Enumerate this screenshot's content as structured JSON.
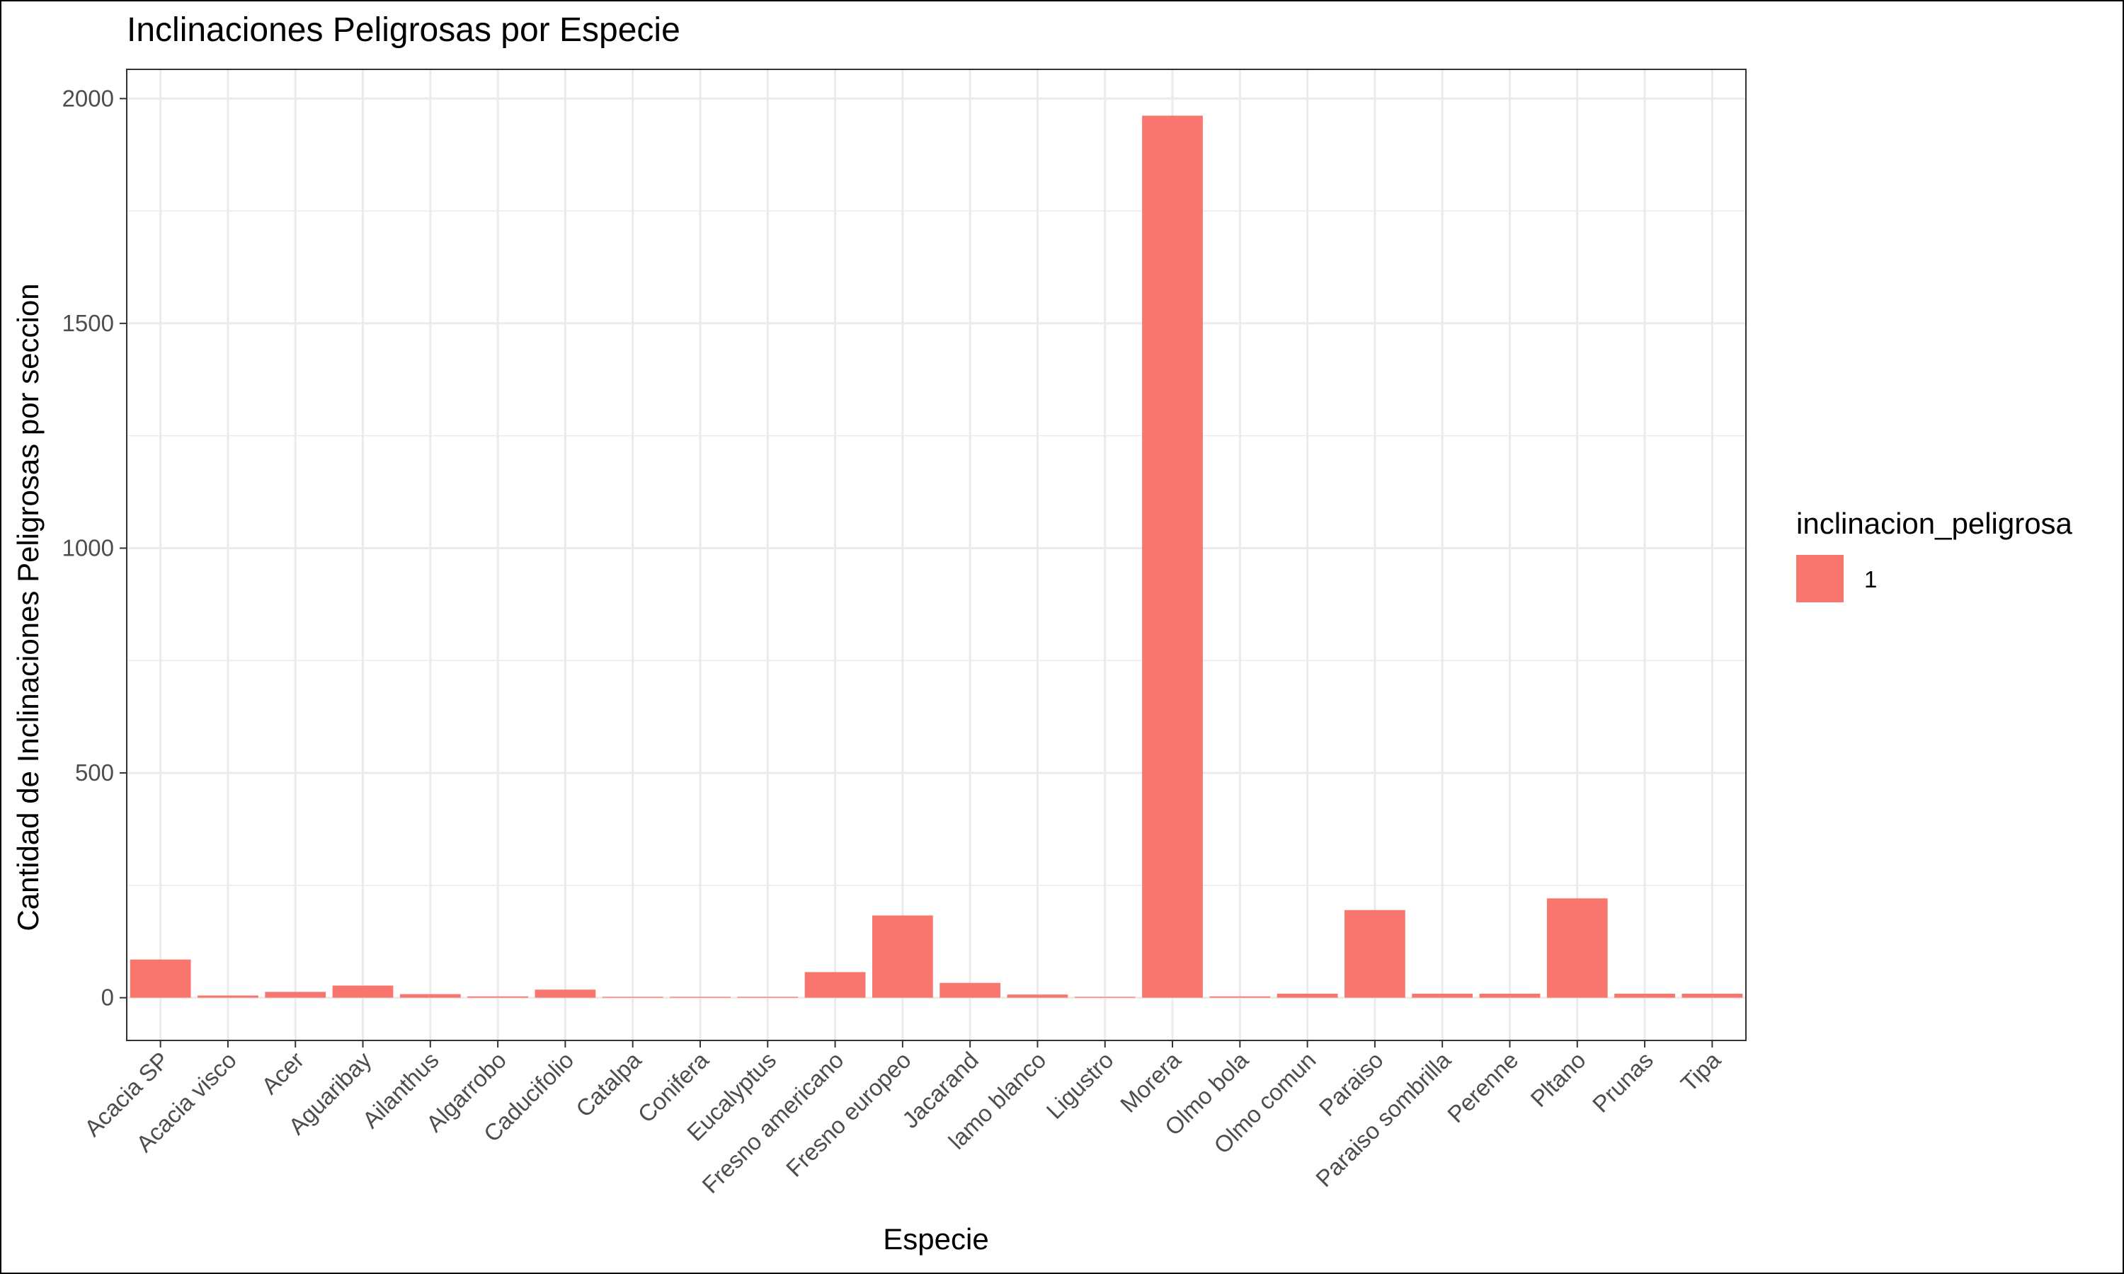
{
  "chart_data": {
    "type": "bar",
    "title": "Inclinaciones Peligrosas por Especie",
    "xlabel": "Especie",
    "ylabel": "Cantidad de Inclinaciones Peligrosas por seccion",
    "categories": [
      "Acacia SP",
      "Acacia visco",
      "Acer",
      "Aguaribay",
      "Ailanthus",
      "Algarrobo",
      "Caducifolio",
      "Catalpa",
      "Conifera",
      "Eucalyptus",
      "Fresno americano",
      "Fresno europeo",
      "Jacarand",
      "lamo blanco",
      "Ligustro",
      "Morera",
      "Olmo bola",
      "Olmo comun",
      "Paraiso",
      "Paraiso sombrilla",
      "Perenne",
      "Pltano",
      "Prunas",
      "Tipa"
    ],
    "series": [
      {
        "name": "1",
        "values": [
          85,
          5,
          13,
          27,
          8,
          3,
          18,
          2,
          2,
          2,
          57,
          183,
          33,
          7,
          2,
          1962,
          3,
          9,
          195,
          9,
          9,
          221,
          9,
          9
        ]
      }
    ],
    "ylim": [
      -95,
      2065
    ],
    "yticks": [
      0,
      500,
      1000,
      1500,
      2000
    ],
    "grid": true,
    "legend": {
      "title": "inclinacion_peligrosa",
      "position": "right",
      "entries": [
        "1"
      ]
    },
    "colors": {
      "bar": "#F8766D",
      "grid": "#EBEBEB",
      "panel_border": "#333333",
      "tick_text": "#4D4D4D",
      "text": "#000000"
    }
  }
}
